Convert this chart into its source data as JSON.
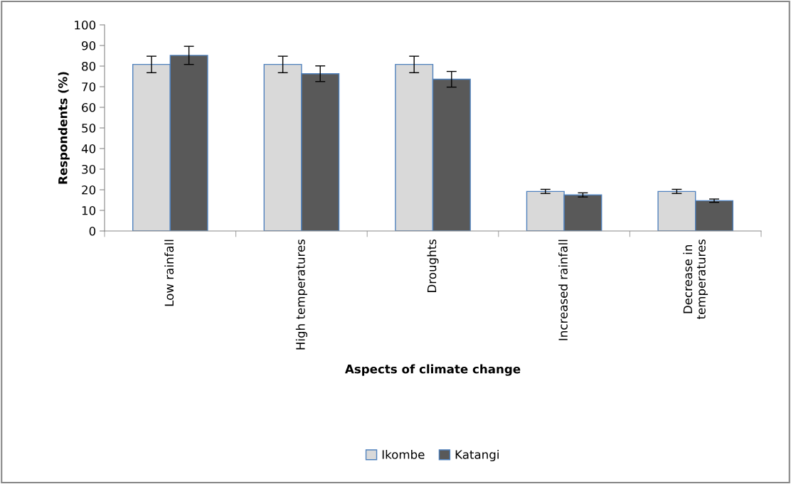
{
  "chart_data": {
    "type": "bar",
    "xlabel": "Aspects of climate change",
    "ylabel": "Respondents (%)",
    "categories": [
      "Low rainfall",
      "High temperatures",
      "Droughts",
      "Increased rainfall",
      "Decrease in\ntemperatures"
    ],
    "series": [
      {
        "name": "Ikombe",
        "color": "#d9d9d9",
        "values": [
          80.8,
          80.8,
          80.8,
          19.2,
          19.2
        ],
        "errors": [
          4,
          4,
          4,
          1,
          1
        ]
      },
      {
        "name": "Katangi",
        "color": "#595959",
        "values": [
          85.2,
          76.3,
          73.6,
          17.5,
          14.7
        ],
        "errors": [
          4.4,
          3.8,
          3.8,
          1,
          0.8
        ]
      }
    ],
    "ylim": [
      0,
      100
    ],
    "yticks": [
      0,
      10,
      20,
      30,
      40,
      50,
      60,
      70,
      80,
      90,
      100
    ],
    "grid": false,
    "legend": "bottom"
  }
}
